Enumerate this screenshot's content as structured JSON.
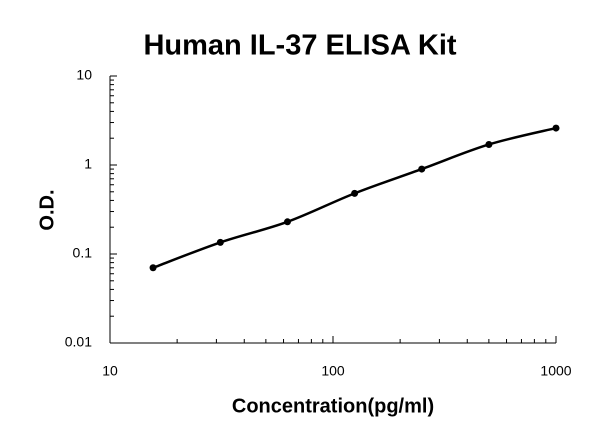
{
  "chart_data": {
    "type": "line",
    "title": "Human IL-37 ELISA Kit",
    "x_label": "Concentration(pg/ml)",
    "y_label": "O.D.",
    "x": [
      15.6,
      31.25,
      62.5,
      125,
      250,
      500,
      1000
    ],
    "series": [
      {
        "values": [
          0.07,
          0.135,
          0.23,
          0.48,
          0.9,
          1.7,
          2.6
        ],
        "color": "#000000"
      }
    ],
    "xlim": [
      10,
      1000
    ],
    "ylim": [
      0.01,
      10
    ],
    "xticks": [
      10,
      100,
      1000
    ],
    "yticks": [
      0.01,
      0.1,
      1,
      10
    ],
    "xlog": true,
    "ylog": true,
    "markers": true
  }
}
